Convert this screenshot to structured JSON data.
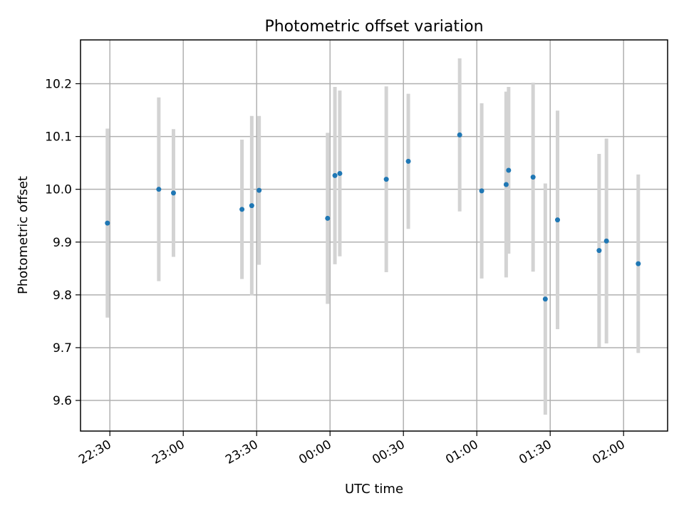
{
  "chart_data": {
    "type": "scatter",
    "title": "Photometric offset variation",
    "xlabel": "UTC time",
    "ylabel": "Photometric offset",
    "grid": true,
    "x_tick_labels": [
      "22:30",
      "23:00",
      "23:30",
      "00:00",
      "00:30",
      "01:00",
      "01:30",
      "02:00"
    ],
    "y_tick_labels": [
      "9.6",
      "9.7",
      "9.8",
      "9.9",
      "10.0",
      "10.1",
      "10.2"
    ],
    "x_range_utc": [
      "22:18",
      "02:18"
    ],
    "ylim": [
      9.542,
      10.283
    ],
    "colors": {
      "point": "#1f77b4",
      "errorbar": "#d3d3d3"
    },
    "points": [
      {
        "time": "22:29",
        "value": 9.936,
        "err": 0.179
      },
      {
        "time": "22:50",
        "value": 10.0,
        "err": 0.174
      },
      {
        "time": "22:56",
        "value": 9.993,
        "err": 0.121
      },
      {
        "time": "23:24",
        "value": 9.962,
        "err": 0.132
      },
      {
        "time": "23:28",
        "value": 9.969,
        "err": 0.17
      },
      {
        "time": "23:31",
        "value": 9.998,
        "err": 0.141
      },
      {
        "time": "23:59",
        "value": 9.945,
        "err": 0.162
      },
      {
        "time": "00:02",
        "value": 10.026,
        "err": 0.168
      },
      {
        "time": "00:04",
        "value": 10.03,
        "err": 0.157
      },
      {
        "time": "00:23",
        "value": 10.019,
        "err": 0.176
      },
      {
        "time": "00:32",
        "value": 10.053,
        "err": 0.128
      },
      {
        "time": "00:53",
        "value": 10.103,
        "err": 0.145
      },
      {
        "time": "01:02",
        "value": 9.997,
        "err": 0.166
      },
      {
        "time": "01:12",
        "value": 10.009,
        "err": 0.176
      },
      {
        "time": "01:13",
        "value": 10.036,
        "err": 0.158
      },
      {
        "time": "01:23",
        "value": 10.023,
        "err": 0.179
      },
      {
        "time": "01:28",
        "value": 9.792,
        "err": 0.219
      },
      {
        "time": "01:33",
        "value": 9.942,
        "err": 0.207
      },
      {
        "time": "01:50",
        "value": 9.884,
        "err": 0.183
      },
      {
        "time": "01:53",
        "value": 9.902,
        "err": 0.194
      },
      {
        "time": "02:06",
        "value": 9.859,
        "err": 0.169
      }
    ]
  }
}
